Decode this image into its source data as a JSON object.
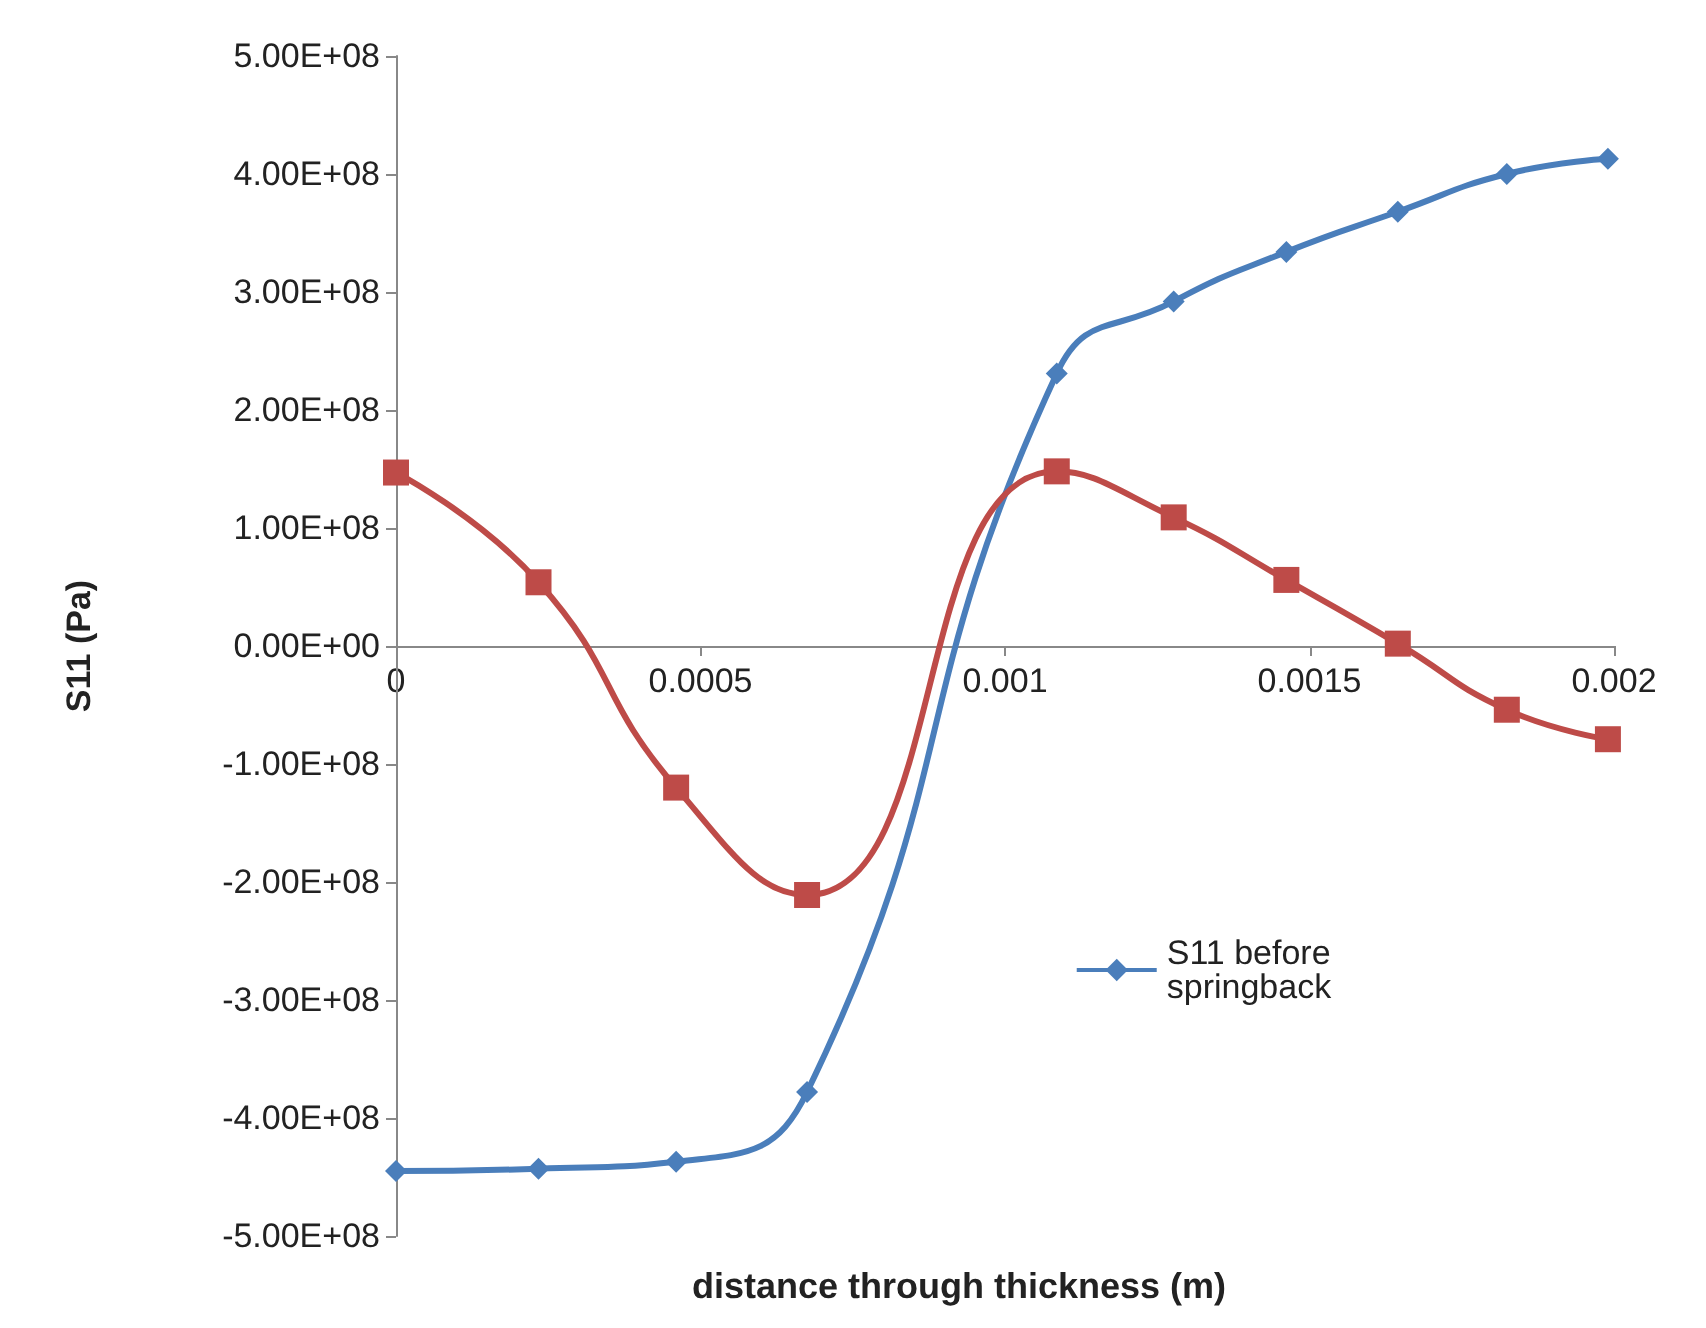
{
  "chart_data": {
    "type": "line",
    "xlabel": "distance through thickness (m)",
    "ylabel": "S11 (Pa)",
    "xlim": [
      0,
      0.002
    ],
    "xticks": [
      0,
      0.0005,
      0.001,
      0.0015,
      0.002
    ],
    "ylim": [
      -500000000,
      500000000
    ],
    "yticks": [
      {
        "value": -500000000,
        "label": "-5.00E+08"
      },
      {
        "value": -400000000,
        "label": "-4.00E+08"
      },
      {
        "value": -300000000,
        "label": "-3.00E+08"
      },
      {
        "value": -200000000,
        "label": "-2.00E+08"
      },
      {
        "value": -100000000,
        "label": "-1.00E+08"
      },
      {
        "value": 0,
        "label": "0.00E+00"
      },
      {
        "value": 100000000,
        "label": "1.00E+08"
      },
      {
        "value": 200000000,
        "label": "2.00E+08"
      },
      {
        "value": 300000000,
        "label": "3.00E+08"
      },
      {
        "value": 400000000,
        "label": "4.00E+08"
      },
      {
        "value": 500000000,
        "label": "5.00E+08"
      }
    ],
    "x": [
      0,
      0.000234,
      0.00046,
      0.000675,
      0.001085,
      0.001277,
      0.001462,
      0.001645,
      0.001824,
      0.00199
    ],
    "series": [
      {
        "name": "S11 before springback",
        "color": "#4a7ebb",
        "marker": "diamond",
        "values": [
          -445000000,
          -443000000,
          -437000000,
          -378000000,
          231000000,
          292000000,
          334000000,
          368000000,
          400000000,
          413000000
        ]
      },
      {
        "color": "#be4b48",
        "marker": "square",
        "values": [
          147000000,
          54000000,
          -120000000,
          -211000000,
          148000000,
          109000000,
          56000000,
          2000000,
          -54000000,
          -79000000
        ]
      }
    ],
    "grid": false,
    "legend": "right"
  }
}
